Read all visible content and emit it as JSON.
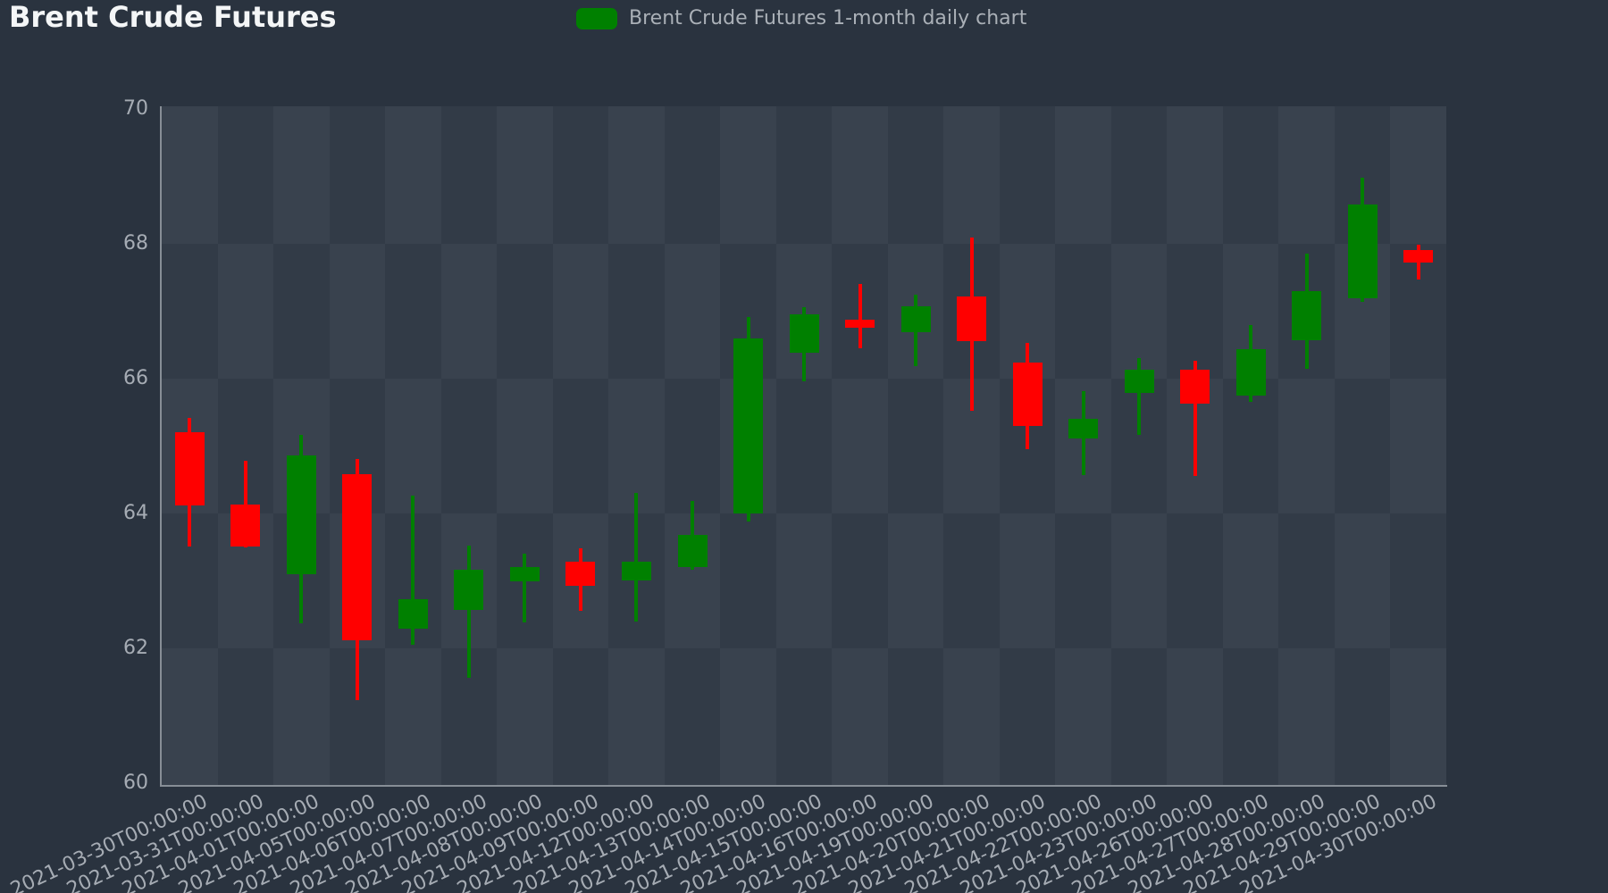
{
  "title": "Brent Crude Futures",
  "legend": {
    "label": "Brent Crude Futures 1-month daily chart",
    "swatch_color": "#008000"
  },
  "colors": {
    "background": "#2a333f",
    "plot_cell_light": "#39424e",
    "plot_cell_dark": "#323b47",
    "axis_line": "#878e96",
    "tick_label": "#a6acb4",
    "legend_text": "#aab0b7",
    "title_text": "#f4f6f7",
    "up": "#008000",
    "down": "#ff0000"
  },
  "y_axis": {
    "tick_labels": [
      "70",
      "68",
      "66",
      "64",
      "62",
      "60"
    ]
  },
  "chart_data": {
    "type": "candlestick",
    "title": "Brent Crude Futures",
    "legend_label": "Brent Crude Futures 1-month daily chart",
    "legend_position": "top-center",
    "grid": "checkerboard-bands",
    "ylim": [
      60,
      70
    ],
    "yticks": [
      70,
      68,
      66,
      64,
      62,
      60
    ],
    "up_color": "#008000",
    "down_color": "#ff0000",
    "x_labels": [
      "2021-03-30T00:00:00",
      "2021-03-31T00:00:00",
      "2021-04-01T00:00:00",
      "2021-04-05T00:00:00",
      "2021-04-06T00:00:00",
      "2021-04-07T00:00:00",
      "2021-04-08T00:00:00",
      "2021-04-09T00:00:00",
      "2021-04-12T00:00:00",
      "2021-04-13T00:00:00",
      "2021-04-14T00:00:00",
      "2021-04-15T00:00:00",
      "2021-04-16T00:00:00",
      "2021-04-19T00:00:00",
      "2021-04-20T00:00:00",
      "2021-04-21T00:00:00",
      "2021-04-22T00:00:00",
      "2021-04-23T00:00:00",
      "2021-04-26T00:00:00",
      "2021-04-27T00:00:00",
      "2021-04-28T00:00:00",
      "2021-04-29T00:00:00",
      "2021-04-30T00:00:00"
    ],
    "open": [
      65.2,
      64.13,
      63.1,
      64.58,
      62.29,
      62.57,
      62.99,
      63.28,
      63.01,
      63.21,
      64.0,
      66.38,
      66.88,
      66.69,
      67.22,
      66.24,
      65.11,
      65.79,
      66.13,
      65.75,
      66.57,
      67.19,
      67.91
    ],
    "high": [
      65.42,
      64.78,
      65.17,
      64.81,
      64.27,
      63.53,
      63.41,
      63.49,
      64.3,
      64.19,
      66.91,
      67.06,
      67.4,
      67.25,
      68.1,
      66.53,
      65.82,
      66.31,
      66.26,
      66.8,
      67.85,
      68.98,
      67.99
    ],
    "low": [
      63.51,
      63.5,
      62.37,
      61.23,
      62.05,
      61.57,
      62.38,
      62.56,
      62.4,
      63.17,
      63.88,
      65.96,
      66.45,
      66.19,
      65.52,
      64.96,
      64.57,
      65.16,
      64.56,
      65.66,
      66.14,
      67.14,
      67.47
    ],
    "close": [
      64.12,
      63.51,
      64.86,
      62.12,
      62.73,
      63.16,
      63.21,
      62.93,
      63.28,
      63.68,
      66.6,
      66.95,
      66.75,
      67.08,
      66.56,
      65.3,
      65.41,
      66.13,
      65.63,
      66.44,
      67.3,
      68.59,
      67.72
    ]
  }
}
